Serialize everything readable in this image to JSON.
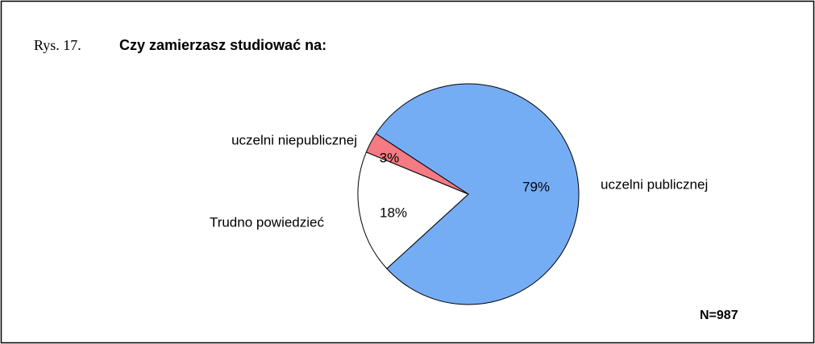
{
  "chart_data": {
    "type": "pie",
    "title_prefix": "Rys. 17.",
    "title": "Czy zamierzasz studiować na:",
    "categories": [
      "uczelni publicznej",
      "Trudno powiedzieć",
      "uczelni niepublicznej"
    ],
    "values": [
      79,
      18,
      3
    ],
    "value_labels": [
      "79%",
      "18%",
      "3%"
    ],
    "colors": [
      "#75adf5",
      "#ffffff",
      "#f47a83"
    ],
    "note": "N=987"
  }
}
